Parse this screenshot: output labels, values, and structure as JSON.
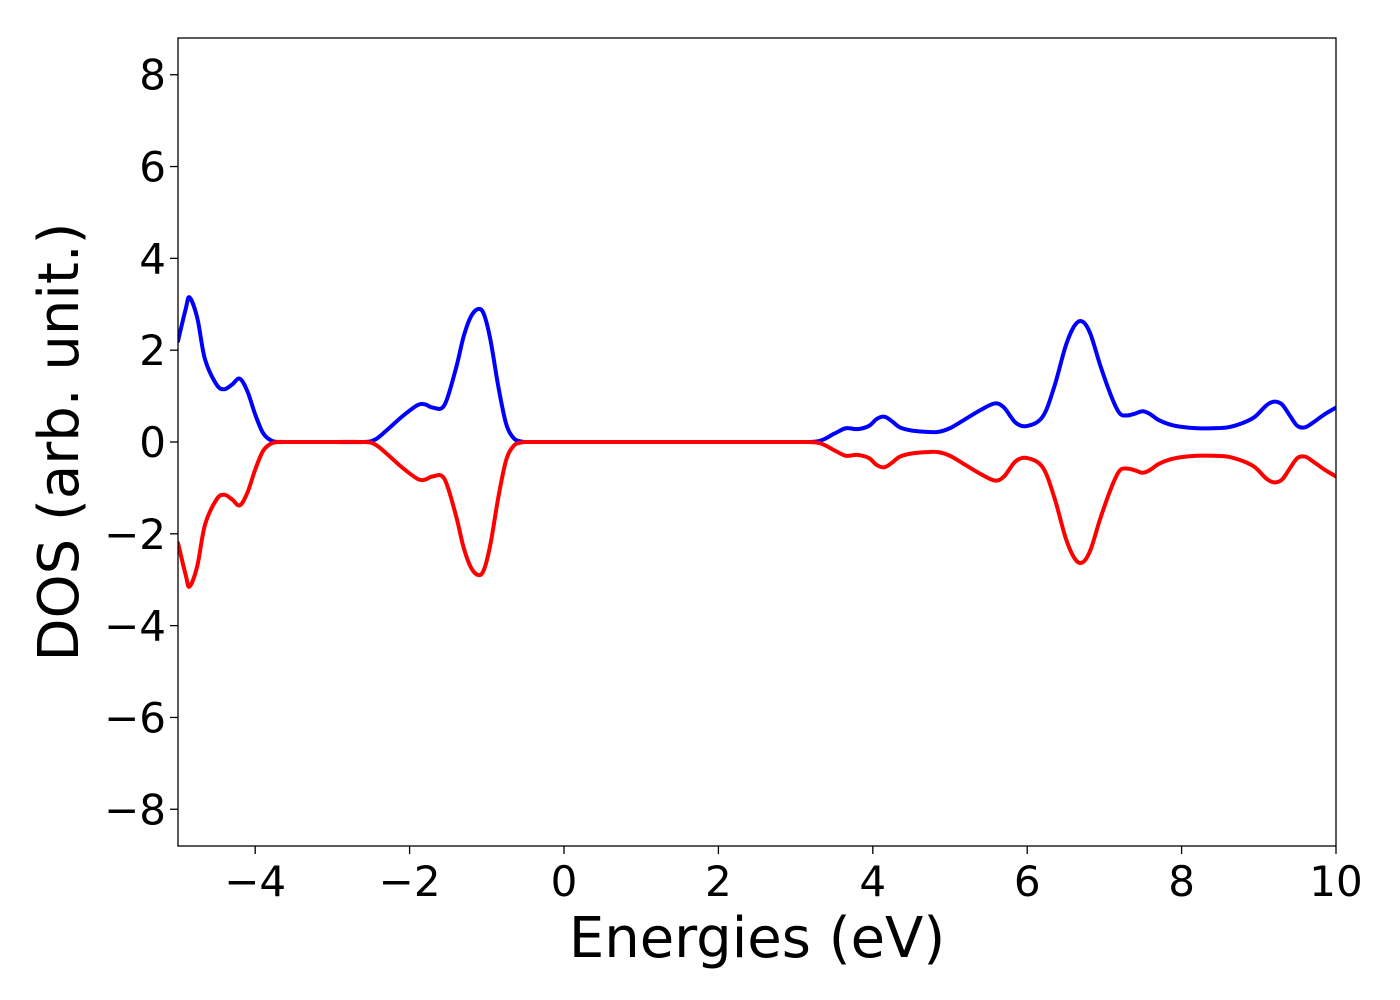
{
  "chart_data": {
    "type": "line",
    "title": "",
    "xlabel": "Energies (eV)",
    "ylabel": "DOS (arb. unit.)",
    "xlim": [
      -5,
      10
    ],
    "ylim": [
      -8.8,
      8.8
    ],
    "xticks": [
      -4,
      -2,
      0,
      2,
      4,
      6,
      8,
      10
    ],
    "xtick_labels": [
      "−4",
      "−2",
      "0",
      "2",
      "4",
      "6",
      "8",
      "10"
    ],
    "yticks": [
      8,
      6,
      4,
      2,
      0,
      -2,
      -4,
      -6,
      -8
    ],
    "ytick_labels": [
      "8",
      "6",
      "4",
      "2",
      "0",
      "−2",
      "−4",
      "−6",
      "−8"
    ],
    "grid": false,
    "legend": "none",
    "series": [
      {
        "color": "#0000ff",
        "x": [
          -5.0,
          -4.9,
          -4.85,
          -4.75,
          -4.65,
          -4.5,
          -4.4,
          -4.3,
          -4.2,
          -4.1,
          -4.0,
          -3.9,
          -3.8,
          -3.7,
          -3.6,
          -3.4,
          -3.0,
          -2.6,
          -2.45,
          -2.3,
          -2.1,
          -1.9,
          -1.8,
          -1.7,
          -1.55,
          -1.4,
          -1.3,
          -1.2,
          -1.1,
          -1.03,
          -0.95,
          -0.85,
          -0.75,
          -0.65,
          -0.55,
          -0.45,
          0.0,
          1.0,
          2.0,
          3.0,
          3.3,
          3.5,
          3.65,
          3.8,
          3.95,
          4.05,
          4.15,
          4.25,
          4.35,
          4.5,
          4.7,
          4.85,
          5.0,
          5.2,
          5.4,
          5.58,
          5.7,
          5.85,
          6.0,
          6.2,
          6.35,
          6.5,
          6.62,
          6.72,
          6.82,
          6.95,
          7.1,
          7.2,
          7.3,
          7.4,
          7.5,
          7.6,
          7.7,
          7.85,
          8.0,
          8.2,
          8.4,
          8.6,
          8.8,
          8.95,
          9.1,
          9.2,
          9.3,
          9.4,
          9.5,
          9.6,
          9.7,
          9.85,
          10.0
        ],
        "y": [
          2.2,
          2.9,
          3.15,
          2.7,
          1.8,
          1.25,
          1.15,
          1.25,
          1.38,
          1.1,
          0.6,
          0.2,
          0.04,
          0.0,
          0.0,
          0.0,
          0.0,
          0.0,
          0.05,
          0.25,
          0.55,
          0.8,
          0.82,
          0.75,
          0.8,
          1.6,
          2.3,
          2.75,
          2.9,
          2.75,
          2.2,
          1.2,
          0.4,
          0.08,
          0.01,
          0.0,
          0.0,
          0.0,
          0.0,
          0.0,
          0.02,
          0.18,
          0.3,
          0.28,
          0.35,
          0.5,
          0.55,
          0.45,
          0.32,
          0.25,
          0.22,
          0.22,
          0.3,
          0.5,
          0.7,
          0.84,
          0.75,
          0.42,
          0.35,
          0.55,
          1.2,
          2.1,
          2.55,
          2.62,
          2.35,
          1.65,
          0.95,
          0.62,
          0.58,
          0.62,
          0.67,
          0.6,
          0.48,
          0.38,
          0.33,
          0.3,
          0.3,
          0.32,
          0.42,
          0.55,
          0.8,
          0.88,
          0.82,
          0.58,
          0.35,
          0.32,
          0.42,
          0.6,
          0.75
        ]
      },
      {
        "color": "#ff0000",
        "x": [
          -5.0,
          -4.9,
          -4.85,
          -4.75,
          -4.65,
          -4.5,
          -4.4,
          -4.3,
          -4.2,
          -4.1,
          -4.0,
          -3.9,
          -3.8,
          -3.7,
          -3.6,
          -3.4,
          -3.0,
          -2.6,
          -2.45,
          -2.3,
          -2.1,
          -1.9,
          -1.8,
          -1.7,
          -1.55,
          -1.4,
          -1.3,
          -1.2,
          -1.1,
          -1.03,
          -0.95,
          -0.85,
          -0.75,
          -0.65,
          -0.55,
          -0.45,
          0.0,
          1.0,
          2.0,
          3.0,
          3.3,
          3.5,
          3.65,
          3.8,
          3.95,
          4.05,
          4.15,
          4.25,
          4.35,
          4.5,
          4.7,
          4.85,
          5.0,
          5.2,
          5.4,
          5.58,
          5.7,
          5.85,
          6.0,
          6.2,
          6.35,
          6.5,
          6.62,
          6.72,
          6.82,
          6.95,
          7.1,
          7.2,
          7.3,
          7.4,
          7.5,
          7.6,
          7.7,
          7.85,
          8.0,
          8.2,
          8.4,
          8.6,
          8.8,
          8.95,
          9.1,
          9.2,
          9.3,
          9.4,
          9.5,
          9.6,
          9.7,
          9.85,
          10.0
        ],
        "y": [
          -2.2,
          -2.9,
          -3.15,
          -2.7,
          -1.8,
          -1.25,
          -1.15,
          -1.25,
          -1.38,
          -1.1,
          -0.6,
          -0.2,
          -0.04,
          0.0,
          0.0,
          0.0,
          0.0,
          0.0,
          -0.05,
          -0.25,
          -0.55,
          -0.8,
          -0.82,
          -0.75,
          -0.8,
          -1.6,
          -2.3,
          -2.75,
          -2.9,
          -2.75,
          -2.2,
          -1.2,
          -0.4,
          -0.08,
          -0.01,
          0.0,
          0.0,
          0.0,
          0.0,
          0.0,
          -0.02,
          -0.18,
          -0.3,
          -0.28,
          -0.35,
          -0.5,
          -0.55,
          -0.45,
          -0.32,
          -0.25,
          -0.22,
          -0.22,
          -0.3,
          -0.5,
          -0.7,
          -0.84,
          -0.75,
          -0.42,
          -0.35,
          -0.55,
          -1.2,
          -2.1,
          -2.55,
          -2.62,
          -2.35,
          -1.65,
          -0.95,
          -0.62,
          -0.58,
          -0.62,
          -0.67,
          -0.6,
          -0.48,
          -0.38,
          -0.33,
          -0.3,
          -0.3,
          -0.32,
          -0.42,
          -0.55,
          -0.8,
          -0.88,
          -0.82,
          -0.58,
          -0.35,
          -0.32,
          -0.42,
          -0.6,
          -0.75
        ]
      }
    ]
  }
}
